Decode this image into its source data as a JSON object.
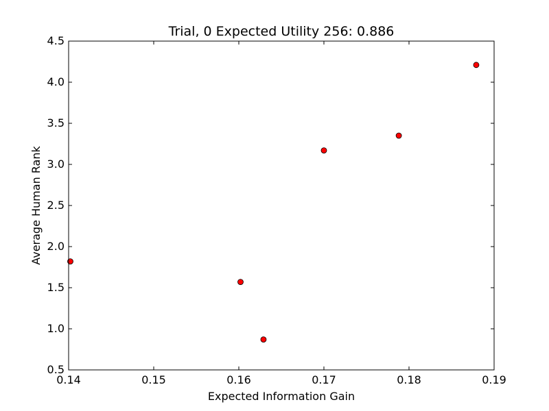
{
  "chart_data": {
    "type": "scatter",
    "title": "Trial, 0 Expected Utility 256: 0.886",
    "xlabel": "Expected Information Gain",
    "ylabel": "Average Human Rank",
    "xlim": [
      0.14,
      0.19
    ],
    "ylim": [
      0.5,
      4.5
    ],
    "xticks": [
      "0.14",
      "0.15",
      "0.16",
      "0.17",
      "0.18",
      "0.19"
    ],
    "yticks": [
      "0.5",
      "1.0",
      "1.5",
      "2.0",
      "2.5",
      "3.0",
      "3.5",
      "4.0",
      "4.5"
    ],
    "grid": false,
    "marker_color": "#ff0000",
    "marker_edge_color": "#000000",
    "points": [
      {
        "x": 0.1402,
        "y": 1.82
      },
      {
        "x": 0.1602,
        "y": 1.57
      },
      {
        "x": 0.1629,
        "y": 0.87
      },
      {
        "x": 0.17,
        "y": 3.17
      },
      {
        "x": 0.1788,
        "y": 3.35
      },
      {
        "x": 0.1879,
        "y": 4.21
      }
    ]
  }
}
